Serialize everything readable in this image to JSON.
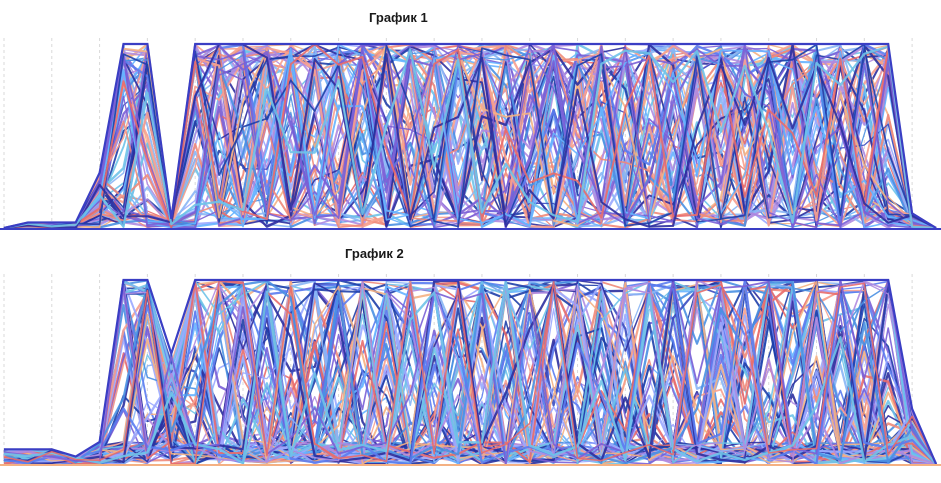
{
  "chart_data": [
    {
      "type": "line",
      "title": "График 1",
      "xlabel": "",
      "ylabel": "",
      "ylim": [
        0,
        100
      ],
      "x_points": 40,
      "grid": "vertical-dashed",
      "legend": "none",
      "envelope": [
        0,
        3,
        3,
        3,
        30,
        100,
        100,
        5,
        100,
        100,
        100,
        100,
        100,
        100,
        100,
        100,
        100,
        100,
        100,
        100,
        100,
        100,
        100,
        100,
        100,
        100,
        100,
        100,
        100,
        100,
        100,
        100,
        100,
        100,
        100,
        100,
        100,
        100,
        8,
        0
      ],
      "series_count": 90
    },
    {
      "type": "line",
      "title": "График 2",
      "xlabel": "",
      "ylabel": "",
      "ylim": [
        0,
        100
      ],
      "x_points": 40,
      "grid": "vertical-dashed",
      "legend": "none",
      "envelope": [
        8,
        8,
        8,
        4,
        12,
        100,
        100,
        60,
        100,
        100,
        100,
        100,
        100,
        100,
        100,
        100,
        100,
        100,
        100,
        100,
        100,
        100,
        100,
        100,
        100,
        100,
        100,
        100,
        100,
        100,
        100,
        100,
        100,
        100,
        100,
        100,
        100,
        100,
        30,
        0
      ],
      "series_count": 110
    }
  ],
  "palette": [
    "#3b4cc0",
    "#1f3fa8",
    "#5b7cf0",
    "#4a90e2",
    "#6fc3e8",
    "#8ab6f5",
    "#f08a7a",
    "#f7a08e",
    "#e86b6b",
    "#b08be0",
    "#7a5fd6",
    "#f4b183",
    "#2c2f9e",
    "#66b3ff",
    "#9aa8ff"
  ]
}
